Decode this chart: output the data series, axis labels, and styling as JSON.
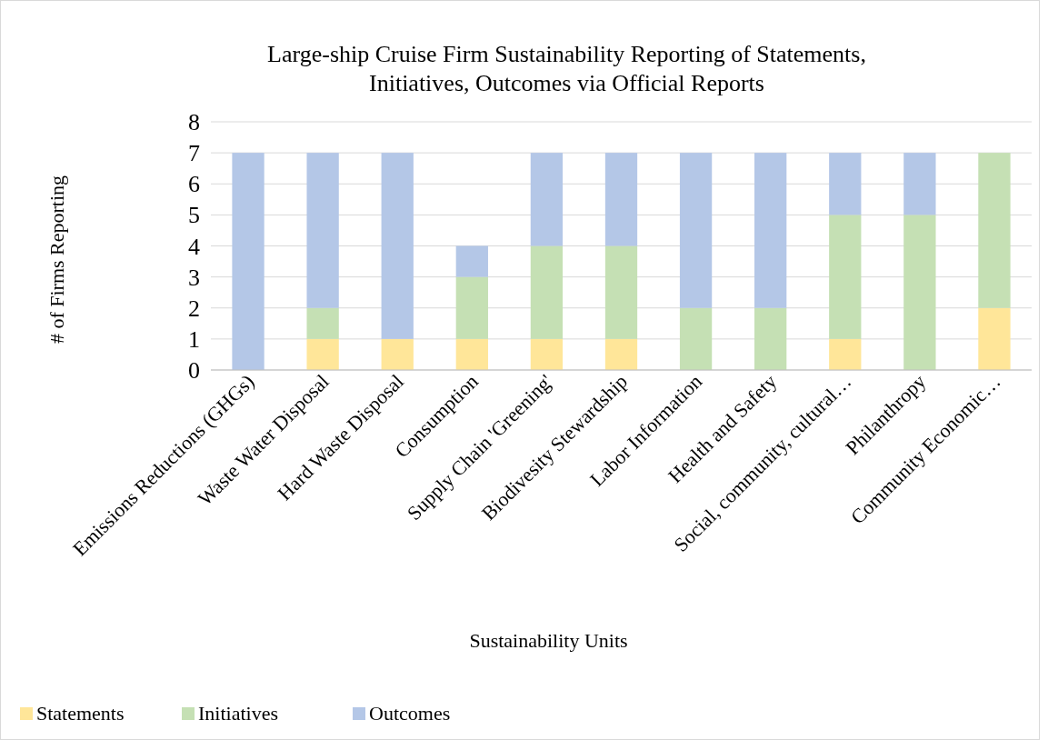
{
  "chart_data": {
    "type": "bar",
    "title": "Large-ship Cruise Firm Sustainability Reporting of Statements, Initiatives, Outcomes via Official Reports",
    "xlabel": "Sustainability Units",
    "ylabel": "# of Firms Reporting",
    "categories": [
      "Emissions Reductions (GHGs)",
      "Waste Water Disposal",
      "Hard Waste Disposal",
      "Consumption",
      "Supply Chain 'Greening'",
      "Biodivesity Stewardship",
      "Labor Information",
      "Health and Safety",
      "Social, community, cultural…",
      "Philanthropy",
      "Community Economic…"
    ],
    "series": [
      {
        "name": "Statements",
        "color": "#ffe699",
        "values": [
          0,
          1,
          1,
          1,
          1,
          1,
          0,
          0,
          1,
          0,
          2
        ]
      },
      {
        "name": "Initiatives",
        "color": "#c5e0b4",
        "values": [
          0,
          1,
          0,
          2,
          3,
          3,
          2,
          2,
          4,
          5,
          5
        ]
      },
      {
        "name": "Outcomes",
        "color": "#b4c7e7",
        "values": [
          7,
          5,
          6,
          1,
          3,
          3,
          5,
          5,
          2,
          2,
          0
        ]
      }
    ],
    "stacked": true,
    "ylim": [
      0,
      8
    ],
    "yticks": [
      0,
      1,
      2,
      3,
      4,
      5,
      6,
      7,
      8
    ],
    "grid": "y",
    "legend": "bottom left"
  }
}
